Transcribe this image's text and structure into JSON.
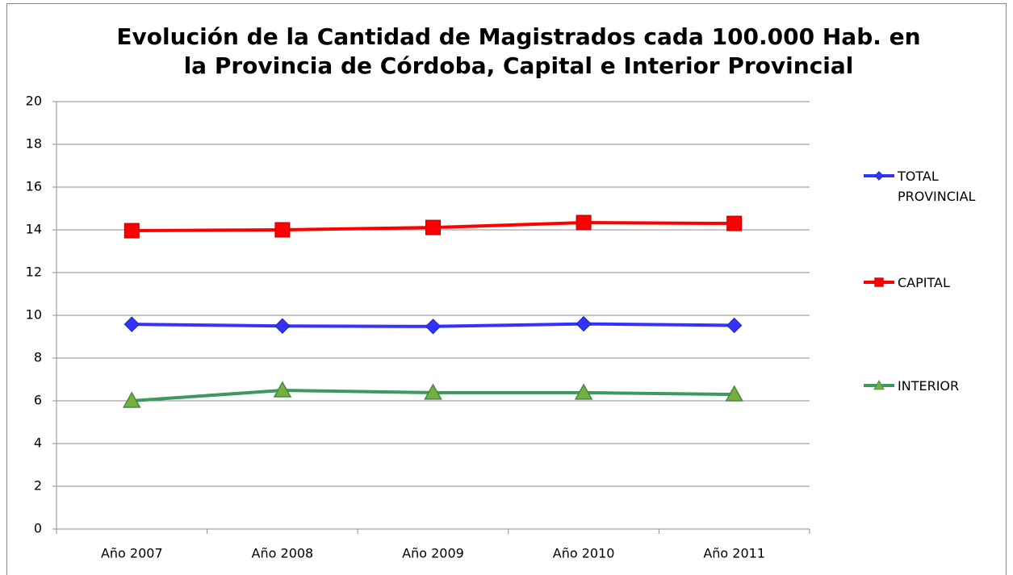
{
  "chart_data": {
    "type": "line",
    "title": "Evolución de la Cantidad de Magistrados cada 100.000 Hab. en la Provincia de Córdoba, Capital e Interior Provincial",
    "categories": [
      "Año 2007",
      "Año 2008",
      "Año 2009",
      "Año 2010",
      "Año 2011"
    ],
    "series": [
      {
        "name": "TOTAL PROVINCIAL",
        "color": "#3333ff",
        "marker": "diamond",
        "values": [
          9.58,
          9.5,
          9.48,
          9.6,
          9.53
        ]
      },
      {
        "name": "CAPITAL",
        "color": "#ff0000",
        "marker": "square",
        "values": [
          13.96,
          14.0,
          14.11,
          14.34,
          14.3
        ]
      },
      {
        "name": "INTERIOR",
        "color": "#3d9a5c",
        "marker": "triangle",
        "values": [
          6.0,
          6.49,
          6.38,
          6.38,
          6.3
        ]
      }
    ],
    "ylim": [
      0,
      20
    ],
    "yticks": [
      0,
      2,
      4,
      6,
      8,
      10,
      12,
      14,
      16,
      18,
      20
    ],
    "grid": true,
    "legend": "right"
  }
}
